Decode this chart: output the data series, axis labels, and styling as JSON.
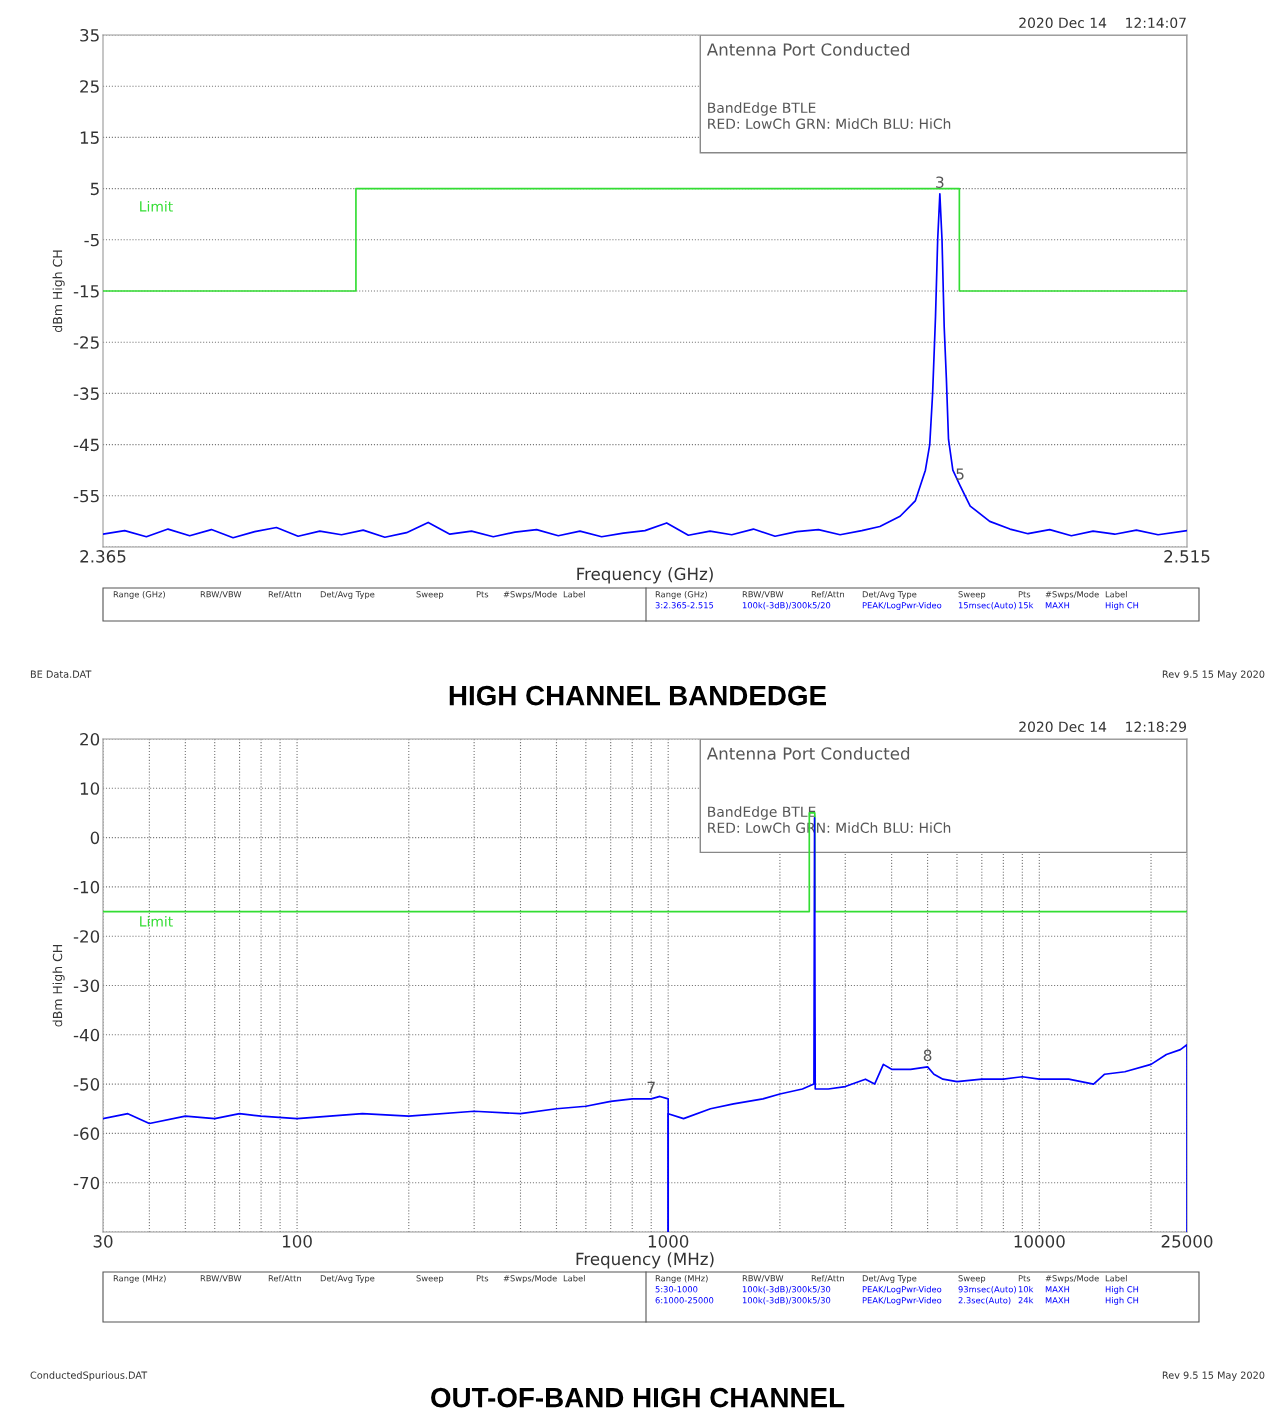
{
  "chart_data": [
    {
      "type": "line",
      "title": "HIGH CHANNEL BANDEDGE",
      "xlabel": "Frequency (GHz)",
      "ylabel": "dBm High CH",
      "xlim": [
        2.365,
        2.515
      ],
      "xticks": [
        2.365,
        2.515
      ],
      "ylim": [
        -65,
        35
      ],
      "yticks": [
        35,
        25,
        15,
        5,
        -5,
        -15,
        -25,
        -35,
        -45,
        -55,
        {
          "value": -65,
          "label": null
        }
      ],
      "grid": "y",
      "legend": false,
      "series": [
        {
          "name": "Limit",
          "color": "#33dd33",
          "x": [
            2.365,
            2.4,
            2.4,
            2.4835,
            2.4835,
            2.515
          ],
          "values": [
            -15,
            -15,
            5,
            5,
            -15,
            -15
          ]
        },
        {
          "color": "#0000ff",
          "x": [
            2.365,
            2.368,
            2.371,
            2.374,
            2.377,
            2.38,
            2.383,
            2.386,
            2.389,
            2.392,
            2.395,
            2.398,
            2.401,
            2.404,
            2.407,
            2.41,
            2.413,
            2.416,
            2.419,
            2.422,
            2.425,
            2.428,
            2.431,
            2.434,
            2.437,
            2.44,
            2.443,
            2.446,
            2.449,
            2.452,
            2.455,
            2.458,
            2.461,
            2.464,
            2.467,
            2.47,
            2.4725,
            2.4753,
            2.4774,
            2.4788,
            2.4794,
            2.4798,
            2.4802,
            2.4805,
            2.4808,
            2.4811,
            2.4814,
            2.4817,
            2.482,
            2.4826,
            2.4836,
            2.485,
            2.4877,
            2.4905,
            2.493,
            2.496,
            2.499,
            2.502,
            2.505,
            2.508,
            2.511,
            2.515
          ],
          "values": [
            -62.5,
            -61.8,
            -63.0,
            -61.5,
            -62.8,
            -61.6,
            -63.2,
            -62.0,
            -61.2,
            -62.9,
            -61.9,
            -62.6,
            -61.7,
            -63.1,
            -62.2,
            -60.2,
            -62.5,
            -61.9,
            -63.0,
            -62.1,
            -61.6,
            -62.8,
            -61.9,
            -63.0,
            -62.3,
            -61.8,
            -60.3,
            -62.7,
            -61.9,
            -62.6,
            -61.5,
            -62.9,
            -62.0,
            -61.6,
            -62.6,
            -61.8,
            -61.0,
            -59.0,
            -56.0,
            -50.0,
            -45.0,
            -35.0,
            -20.0,
            -5.0,
            4.0,
            -5.0,
            -22.0,
            -32.0,
            -44.0,
            -50.0,
            -53.0,
            -57.0,
            -60.0,
            -61.5,
            -62.4,
            -61.6,
            -62.8,
            -61.9,
            -62.5,
            -61.7,
            -62.6,
            -61.8
          ]
        }
      ],
      "annotations": [
        "2020 Dec 14    12:14:07",
        "Antenna Port Conducted",
        "BandEdge BTLE",
        "RED: LowCh GRN: MidCh BLU: HiCh",
        "BE Data.DAT",
        "Rev 9.5 15 May 2020",
        "Range (GHz)",
        "RBW/VBW",
        "Ref/Attn",
        "Det/Avg Type",
        "Sweep",
        "Pts",
        "#Swps/Mode",
        "Label",
        "Range (GHz)",
        "RBW/VBW",
        "Ref/Attn",
        "Det/Avg Type",
        "Sweep",
        "Pts",
        "#Swps/Mode",
        "Label",
        "3:2.365-2.515",
        "100k(-3dB)/300k5/20",
        "PEAK/LogPwr-Video",
        "15msec(Auto)",
        "15k",
        "MAXH",
        "High CH",
        {
          "text": "3",
          "x": 2.4808,
          "y": 4
        },
        {
          "text": "5",
          "x": 2.4836,
          "y": -53
        }
      ]
    },
    {
      "type": "line",
      "title": "OUT-OF-BAND HIGH CHANNEL",
      "xlabel": "Frequency (MHz)",
      "ylabel": "dBm High CH",
      "log": "x",
      "xlim": [
        30,
        25000
      ],
      "xticks": [
        30,
        {
          "value": 40,
          "label": null
        },
        {
          "value": 50,
          "label": null
        },
        {
          "value": 60,
          "label": null
        },
        {
          "value": 70,
          "label": null
        },
        {
          "value": 80,
          "label": null
        },
        {
          "value": 90,
          "label": null
        },
        100,
        {
          "value": 200,
          "label": null
        },
        {
          "value": 300,
          "label": null
        },
        {
          "value": 400,
          "label": null
        },
        {
          "value": 500,
          "label": null
        },
        {
          "value": 600,
          "label": null
        },
        {
          "value": 700,
          "label": null
        },
        {
          "value": 800,
          "label": null
        },
        {
          "value": 900,
          "label": null
        },
        1000,
        {
          "value": 2000,
          "label": null
        },
        {
          "value": 3000,
          "label": null
        },
        {
          "value": 4000,
          "label": null
        },
        {
          "value": 5000,
          "label": null
        },
        {
          "value": 6000,
          "label": null
        },
        {
          "value": 7000,
          "label": null
        },
        {
          "value": 8000,
          "label": null
        },
        {
          "value": 9000,
          "label": null
        },
        10000,
        {
          "value": 20000,
          "label": null
        },
        25000
      ],
      "ylim": [
        -80,
        20
      ],
      "yticks": [
        20,
        10,
        0,
        -10,
        -20,
        -30,
        -40,
        -50,
        -60,
        -70,
        {
          "value": -80,
          "label": null
        }
      ],
      "grid": true,
      "legend": false,
      "series": [
        {
          "name": "Limit",
          "color": "#33dd33",
          "x": [
            30,
            2400,
            2400,
            2483.5,
            2483.5,
            25000
          ],
          "values": [
            -15,
            -15,
            5,
            5,
            -15,
            -15
          ]
        },
        {
          "color": "#0000ff",
          "x": [
            30,
            35,
            40,
            50,
            60,
            70,
            80,
            100,
            150,
            200,
            300,
            400,
            500,
            600,
            700,
            800,
            900,
            950,
            1000,
            1000
          ],
          "values": [
            -57,
            -56,
            -58,
            -56.5,
            -57,
            -56,
            -56.5,
            -57,
            -56,
            -56.5,
            -55.5,
            -56,
            -55,
            -54.5,
            -53.5,
            -53,
            -53,
            -52.5,
            -53,
            -80
          ]
        },
        {
          "color": "#0000ff",
          "x": [
            1000,
            1000,
            1100,
            1300,
            1500,
            1800,
            2000,
            2300,
            2470,
            2480,
            2490,
            2700,
            3000,
            3400,
            3600,
            3800,
            4000,
            4500,
            5000,
            5200,
            5500,
            6000,
            7000,
            8000,
            9000,
            10000,
            12000,
            14000,
            15000,
            17000,
            20000,
            22000,
            24000,
            25000,
            25000
          ],
          "values": [
            -80,
            -56,
            -57,
            -55,
            -54,
            -53,
            -52,
            -51,
            -50,
            4,
            -51,
            -51,
            -50.5,
            -49,
            -50,
            -46,
            -47,
            -47,
            -46.5,
            -48,
            -49,
            -49.5,
            -49,
            -49,
            -48.5,
            -49,
            -49,
            -50,
            -48,
            -47.5,
            -46,
            -44,
            -43,
            -42,
            -80
          ]
        }
      ],
      "annotations": [
        "2020 Dec 14    12:18:29",
        "Antenna Port Conducted",
        "BandEdge BTLE",
        "RED: LowCh GRN: MidCh BLU: HiCh",
        "ConductedSpurious.DAT",
        "Rev 9.5 15 May 2020",
        "Range (MHz)",
        "RBW/VBW",
        "Ref/Attn",
        "Det/Avg Type",
        "Sweep",
        "Pts",
        "#Swps/Mode",
        "Label",
        "Range (MHz)",
        "RBW/VBW",
        "Ref/Attn",
        "Det/Avg Type",
        "Sweep",
        "Pts",
        "#Swps/Mode",
        "Label",
        "5:30-1000",
        "100k(-3dB)/300k5/30",
        "PEAK/LogPwr-Video",
        "93msec(Auto)",
        "10k",
        "MAXH",
        "High CH",
        "6:1000-25000",
        "100k(-3dB)/300k5/30",
        "PEAK/LogPwr-Video",
        "2.3sec(Auto)",
        "24k",
        "MAXH",
        "High CH",
        {
          "text": "7",
          "x": 900,
          "y": -53
        },
        {
          "text": "8",
          "x": 5000,
          "y": -46.5
        }
      ]
    }
  ]
}
